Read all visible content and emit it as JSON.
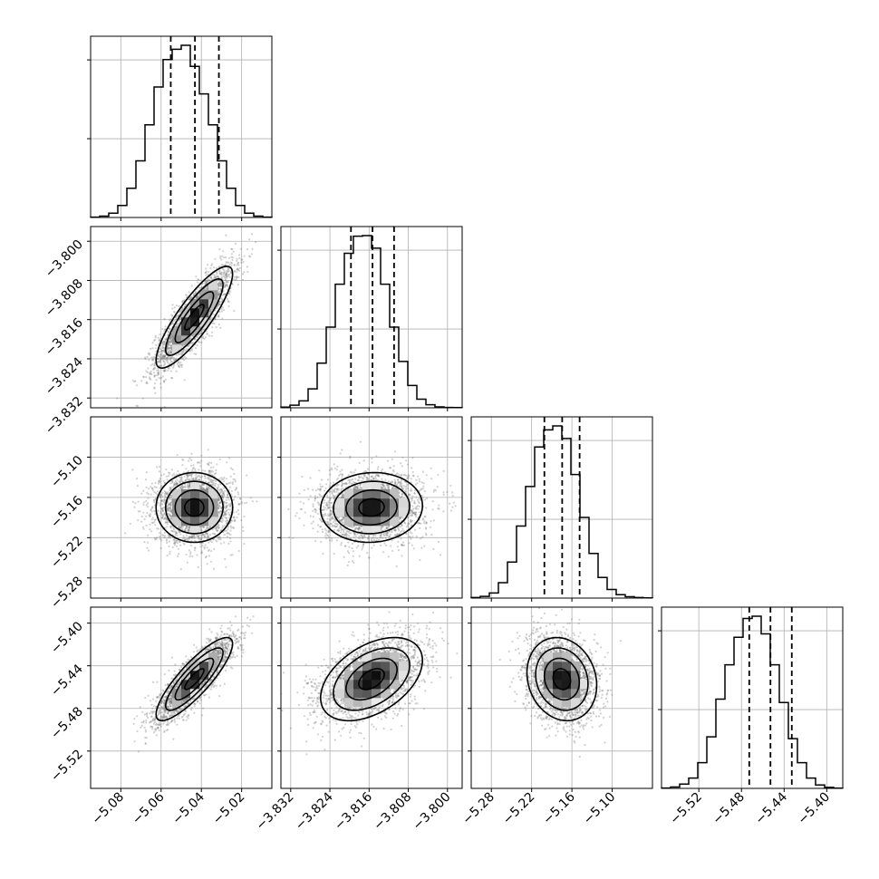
{
  "chart_data": {
    "type": "corner",
    "variables": [
      {
        "range": [
          -5.095,
          -5.005
        ],
        "ticks": [
          -5.08,
          -5.06,
          -5.04,
          -5.02
        ],
        "tick_labels": [
          "−5.08",
          "−5.06",
          "−5.04",
          "−5.02"
        ],
        "mean": -5.0435,
        "sd": 0.0095,
        "quantiles": [
          -5.0552,
          -5.0432,
          -5.0313
        ],
        "hist_max": 2300,
        "hist_y_ticks": [
          1000,
          2000,
          3000
        ],
        "histogram": {
          "edges": [
            -5.095,
            -5.0905,
            -5.086,
            -5.0815,
            -5.077,
            -5.0725,
            -5.068,
            -5.0635,
            -5.059,
            -5.0545,
            -5.05,
            -5.0455,
            -5.041,
            -5.0365,
            -5.032,
            -5.0275,
            -5.023,
            -5.0185,
            -5.014,
            -5.0095,
            -5.005
          ],
          "counts": [
            2,
            8,
            25,
            70,
            170,
            330,
            540,
            760,
            920,
            980,
            1003,
            880,
            720,
            540,
            330,
            170,
            70,
            25,
            8,
            2
          ]
        }
      },
      {
        "range": [
          -3.834,
          -3.797
        ],
        "ticks": [
          -3.832,
          -3.824,
          -3.816,
          -3.808,
          -3.8
        ],
        "tick_labels": [
          "−3.832",
          "−3.824",
          "−3.816",
          "−3.808",
          "−3.800"
        ],
        "mean": -3.8155,
        "sd": 0.0052,
        "quantiles": [
          -3.8197,
          -3.8153,
          -3.8109
        ],
        "hist_max": 2300,
        "hist_y_ticks": [
          1000,
          2000,
          3000
        ],
        "histogram": {
          "edges": [
            -3.834,
            -3.83215,
            -3.8303,
            -3.82845,
            -3.8266,
            -3.82475,
            -3.8229,
            -3.82105,
            -3.8192,
            -3.81735,
            -3.8155,
            -3.81365,
            -3.8118,
            -3.80995,
            -3.8081,
            -3.80625,
            -3.8044,
            -3.80255,
            -3.8007,
            -3.79885,
            -3.797
          ],
          "counts": [
            4,
            15,
            40,
            110,
            260,
            470,
            720,
            900,
            1000,
            1003,
            930,
            720,
            470,
            270,
            130,
            50,
            18,
            5,
            2,
            1
          ]
        }
      },
      {
        "range": [
          -5.31,
          -5.04
        ],
        "ticks": [
          -5.28,
          -5.22,
          -5.16,
          -5.1
        ],
        "tick_labels": [
          "−5.28",
          "−5.22",
          "−5.16",
          "−5.10"
        ],
        "mean": -5.175,
        "sd": 0.026,
        "quantiles": [
          -5.201,
          -5.1745,
          -5.1485
        ],
        "hist_max": 2300,
        "hist_y_ticks": [
          1000,
          2000,
          3000
        ],
        "histogram": {
          "edges": [
            -5.31,
            -5.2965,
            -5.283,
            -5.2695,
            -5.256,
            -5.2425,
            -5.229,
            -5.2155,
            -5.202,
            -5.1885,
            -5.175,
            -5.1615,
            -5.148,
            -5.1345,
            -5.121,
            -5.1075,
            -5.094,
            -5.0805,
            -5.067,
            -5.0535,
            -5.04
          ],
          "counts": [
            3,
            10,
            30,
            90,
            210,
            420,
            650,
            880,
            980,
            1003,
            930,
            720,
            470,
            260,
            120,
            50,
            20,
            8,
            3,
            1
          ]
        }
      },
      {
        "range": [
          -5.555,
          -5.385
        ],
        "ticks": [
          -5.52,
          -5.48,
          -5.44,
          -5.4
        ],
        "tick_labels": [
          "−5.52",
          "−5.48",
          "−5.44",
          "−5.40"
        ],
        "mean": -5.4525,
        "sd": 0.0195,
        "quantiles": [
          -5.4727,
          -5.4528,
          -5.4328
        ],
        "hist_max": 2300,
        "hist_y_ticks": [
          1000,
          2000,
          3000
        ],
        "histogram": {
          "edges": [
            -5.555,
            -5.5465,
            -5.538,
            -5.5295,
            -5.521,
            -5.5125,
            -5.504,
            -5.4955,
            -5.487,
            -5.4785,
            -5.47,
            -5.4615,
            -5.453,
            -5.4445,
            -5.436,
            -5.4275,
            -5.419,
            -5.4105,
            -5.402,
            -5.3935,
            -5.385
          ],
          "counts": [
            2,
            8,
            25,
            60,
            150,
            300,
            520,
            720,
            880,
            990,
            1003,
            900,
            720,
            500,
            290,
            150,
            60,
            20,
            6,
            1
          ]
        }
      }
    ],
    "correlations": [
      [
        1,
        0.85,
        0.0,
        0.85
      ],
      [
        0.85,
        1,
        0.05,
        0.45
      ],
      [
        0.0,
        0.05,
        1,
        -0.15
      ],
      [
        0.85,
        0.45,
        -0.15,
        1
      ]
    ],
    "grid": true,
    "colors": {
      "points": "#7a7a7a",
      "lines": "#000000"
    }
  }
}
